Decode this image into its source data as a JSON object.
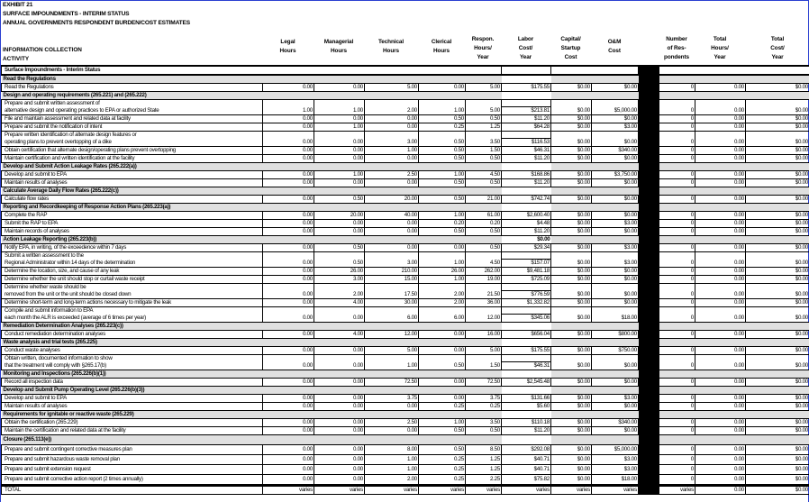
{
  "titles": [
    "EXHIBIT 21",
    "SURFACE IMPOUNDMENTS - INTERIM STATUS",
    "ANNUAL GOVERNMENTS RESPONDENT BURDEN/COST ESTIMATES"
  ],
  "header": {
    "activity": [
      "INFORMATION COLLECTION",
      "ACTIVITY"
    ],
    "columns": [
      [
        "Legal",
        "Hours"
      ],
      [
        "Managerial",
        "Hours"
      ],
      [
        "Technical",
        "Hours"
      ],
      [
        "Clerical",
        "Hours"
      ],
      [
        "Respon.",
        "Hours/",
        "Year"
      ],
      [
        "Labor",
        "Cost/",
        "Year"
      ],
      [
        "Capital/",
        "Startup",
        "Cost"
      ],
      [
        "O&M",
        "Cost"
      ],
      [
        "Number",
        "of Res-",
        "pondents"
      ],
      [
        "Total",
        "Hours/",
        "Year"
      ],
      [
        "Total",
        "Cost/",
        "Year"
      ]
    ]
  },
  "colors": {
    "section_bg": "#e0e0e0",
    "frame": "#2a3fd0",
    "divider": "#000000"
  },
  "rows": [
    {
      "type": "top",
      "label": "Surface Impoundments - Interim Status"
    },
    {
      "type": "sec",
      "label": "Read the Regulations"
    },
    {
      "label": [
        "Read the Regulations"
      ],
      "v": [
        "0.00",
        "0.00",
        "5.00",
        "0.00",
        "5.00",
        "$175.55",
        "$0.00",
        "$0.00"
      ],
      "r": [
        "0",
        "0.00",
        "$0.00"
      ]
    },
    {
      "type": "sec",
      "label": "Design and operating requirements (265.221) and (265.222)"
    },
    {
      "label": [
        "Prepare and submit written assessment of",
        "alternative design and operating practices to EPA or authorized State"
      ],
      "v": [
        "1.00",
        "1.00",
        "2.00",
        "1.00",
        "5.00",
        "$213.81",
        "$0.00",
        "$5,000.00"
      ],
      "r": [
        "0",
        "0.00",
        "$0.00"
      ]
    },
    {
      "label": [
        "File and maintain  assessment  and related data at facility"
      ],
      "v": [
        "0.00",
        "0.00",
        "0.00",
        "0.50",
        "0.50",
        "$11.20",
        "$0.00",
        "$0.00"
      ],
      "r": [
        "0",
        "0.00",
        "$0.00"
      ]
    },
    {
      "label": [
        "Prepare and submit the notification of intent"
      ],
      "v": [
        "0.00",
        "1.00",
        "0.00",
        "0.25",
        "1.25",
        "$64.28",
        "$0.00",
        "$3.00"
      ],
      "r": [
        "0",
        "0.00",
        "$0.00"
      ]
    },
    {
      "label": [
        "Prepare written identification of alternate design features or",
        "operating plans to prevent overtopping of  a dike"
      ],
      "v": [
        "0.00",
        "0.00",
        "3.00",
        "0.50",
        "3.50",
        "$116.53",
        "$0.00",
        "$0.00"
      ],
      "r": [
        "0",
        "0.00",
        "$0.00"
      ]
    },
    {
      "label": [
        "Obtain certification that alternate design/operating plans prevent overtopping"
      ],
      "v": [
        "0.00",
        "0.00",
        "1.00",
        "0.50",
        "1.50",
        "$46.31",
        "$0.00",
        "$340.00"
      ],
      "r": [
        "0",
        "0.00",
        "$0.00"
      ]
    },
    {
      "label": [
        "Maintain certification and written identification at the facility"
      ],
      "v": [
        "0.00",
        "0.00",
        "0.00",
        "0.50",
        "0.50",
        "$11.20",
        "$0.00",
        "$0.00"
      ],
      "r": [
        "0",
        "0.00",
        "$0.00"
      ]
    },
    {
      "type": "sec",
      "label": "Develop and Submit Action Leakage Rates (265.222(a))"
    },
    {
      "label": [
        "Develop and submit to EPA"
      ],
      "v": [
        "0.00",
        "1.00",
        "2.50",
        "1.00",
        "4.50",
        "$168.86",
        "$0.00",
        "$3,750.00"
      ],
      "r": [
        "0",
        "0.00",
        "$0.00"
      ]
    },
    {
      "label": [
        "Maintain results of analyses"
      ],
      "v": [
        "0.00",
        "0.00",
        "0.00",
        "0.50",
        "0.50",
        "$11.20",
        "$0.00",
        "$0.00"
      ],
      "r": [
        "0",
        "0.00",
        "$0.00"
      ]
    },
    {
      "type": "sec",
      "label": "Calculate Average Daily Flow Rates (265.222(c))"
    },
    {
      "label": [
        "Calculate flow rates"
      ],
      "v": [
        "0.00",
        "0.50",
        "20.00",
        "0.50",
        "21.00",
        "$742.74",
        "$0.00",
        "$0.00"
      ],
      "r": [
        "0",
        "0.00",
        "$0.00"
      ]
    },
    {
      "type": "sec",
      "label": "Reporting and Recordkeeping of Response Action Plans (265.223(a))"
    },
    {
      "label": [
        "Complete the RAP"
      ],
      "v": [
        "0.00",
        "20.00",
        "40.00",
        "1.00",
        "61.00",
        "$2,600.40",
        "$0.00",
        "$0.00"
      ],
      "r": [
        "0",
        "0.00",
        "$0.00"
      ]
    },
    {
      "label": [
        "Submit the RAP to EPA"
      ],
      "v": [
        "0.00",
        "0.00",
        "0.00",
        "0.20",
        "0.20",
        "$4.48",
        "$0.00",
        "$3.00"
      ],
      "r": [
        "0",
        "0.00",
        "$0.00"
      ]
    },
    {
      "label": [
        "Maintain records of analyses"
      ],
      "v": [
        "0.00",
        "0.00",
        "0.00",
        "0.50",
        "0.50",
        "$11.20",
        "$0.00",
        "$0.00"
      ],
      "r": [
        "0",
        "0.00",
        "$0.00"
      ]
    },
    {
      "type": "sec",
      "label": "Action Leakage Reporting (265.223(b))",
      "labor": "$0.00"
    },
    {
      "label": [
        "Notify EPA, in writing, of the exceedence within 7 days"
      ],
      "v": [
        "0.00",
        "0.50",
        "0.00",
        "0.00",
        "0.50",
        "$29.34",
        "$0.00",
        "$3.00"
      ],
      "r": [
        "0",
        "0.00",
        "$0.00"
      ]
    },
    {
      "label": [
        "Submit a written assessment to the",
        "Regional Administrator within 14 days of the determination"
      ],
      "v": [
        "0.00",
        "0.50",
        "3.00",
        "1.00",
        "4.50",
        "$157.07",
        "$0.00",
        "$3.00"
      ],
      "r": [
        "0",
        "0.00",
        "$0.00"
      ]
    },
    {
      "label": [
        "Determine the location, size, and cause of any leak"
      ],
      "v": [
        "0.00",
        "26.00",
        "210.00",
        "26.00",
        "262.00",
        "$9,481.18",
        "$0.00",
        "$0.00"
      ],
      "r": [
        "0",
        "0.00",
        "$0.00"
      ]
    },
    {
      "label": [
        "Determine whether the unit should stop or curtail waste receipt"
      ],
      "v": [
        "0.00",
        "3.00",
        "15.00",
        "1.00",
        "19.00",
        "$725.09",
        "$0.00",
        "$0.00"
      ],
      "r": [
        "0",
        "0.00",
        "$0.00"
      ]
    },
    {
      "label": [
        "Determine whether waste should be",
        "removed from the unit or the unit should be closed down"
      ],
      "v": [
        "0.00",
        "2.00",
        "17.50",
        "2.00",
        "21.50",
        "$776.59",
        "$0.00",
        "$0.00"
      ],
      "r": [
        "0",
        "0.00",
        "$0.00"
      ]
    },
    {
      "label": [
        "Determine short-term and long-term actions necessary to mitigate the leak"
      ],
      "v": [
        "0.00",
        "4.00",
        "30.00",
        "2.00",
        "36.00",
        "$1,332.82",
        "$0.00",
        "$0.00"
      ],
      "r": [
        "0",
        "0.00",
        "$0.00"
      ]
    },
    {
      "label": [
        "Compile and submit information to EPA",
        "each month the ALR is exceeded (average of 6 times per year)"
      ],
      "v": [
        "0.00",
        "0.00",
        "6.00",
        "6.00",
        "12.00",
        "$345.06",
        "$0.00",
        "$18.00"
      ],
      "r": [
        "0",
        "0.00",
        "$0.00"
      ]
    },
    {
      "type": "sec",
      "label": "Remediation Determination Analyses (265.223(c))"
    },
    {
      "label": [
        "Conduct remediation determination analyses"
      ],
      "v": [
        "0.00",
        "4.00",
        "12.00",
        "0.00",
        "16.00",
        "$656.04",
        "$0.00",
        "$800.00"
      ],
      "r": [
        "0",
        "0.00",
        "$0.00"
      ]
    },
    {
      "type": "sec",
      "label": "Waste analysis and trial tests (265.225)"
    },
    {
      "label": [
        "Conduct waste analyses"
      ],
      "v": [
        "0.00",
        "0.00",
        "5.00",
        "0.00",
        "5.00",
        "$175.55",
        "$0.00",
        "$750.00"
      ],
      "r": [
        "0",
        "0.00",
        "$0.00"
      ]
    },
    {
      "label": [
        "Obtain written, documented information to show",
        "that the treatment will comply with §265.17(b)"
      ],
      "v": [
        "0.00",
        "0.00",
        "1.00",
        "0.50",
        "1.50",
        "$46.31",
        "$0.00",
        "$0.00"
      ],
      "r": [
        "0",
        "0.00",
        "$0.00"
      ]
    },
    {
      "type": "sec",
      "label": "Monitoring and Inspections (265.226(b)(1))"
    },
    {
      "label": [
        "Record all inspection data"
      ],
      "v": [
        "0.00",
        "0.00",
        "72.50",
        "0.00",
        "72.50",
        "$2,545.48",
        "$0.00",
        "$0.00"
      ],
      "r": [
        "0",
        "0.00",
        "$0.00"
      ]
    },
    {
      "type": "sec",
      "label": "Develop and Submit Pump Operating Level (265.226(b)(3))"
    },
    {
      "label": [
        "Develop and submit to EPA"
      ],
      "v": [
        "0.00",
        "0.00",
        "3.75",
        "0.00",
        "3.75",
        "$131.66",
        "$0.00",
        "$3.00"
      ],
      "r": [
        "0",
        "0.00",
        "$0.00"
      ]
    },
    {
      "label": [
        "Maintain results of analyses"
      ],
      "v": [
        "0.00",
        "0.00",
        "0.00",
        "0.25",
        "0.25",
        "$5.60",
        "$0.00",
        "$0.00"
      ],
      "r": [
        "0",
        "0.00",
        "$0.00"
      ]
    },
    {
      "type": "sec",
      "label": "Requirements for ignitable or reactive waste (265.229)"
    },
    {
      "label": [
        "Obtain the certification (265.229)"
      ],
      "v": [
        "0.00",
        "0.00",
        "2.50",
        "1.00",
        "3.50",
        "$110.18",
        "$0.00",
        "$340.00"
      ],
      "r": [
        "0",
        "0.00",
        "$0.00"
      ]
    },
    {
      "label": [
        "Maintain the certification and related data at the facility"
      ],
      "v": [
        "0.00",
        "0.00",
        "0.00",
        "0.50",
        "0.50",
        "$11.20",
        "$0.00",
        "$0.00"
      ],
      "r": [
        "0",
        "0.00",
        "$0.00"
      ]
    },
    {
      "type": "sec",
      "label": "Closure (265.113(e))",
      "tall": true
    },
    {
      "label": [
        "Prepare and submit contingent corrective measures plan"
      ],
      "v": [
        "0.00",
        "0.00",
        "8.00",
        "0.50",
        "8.50",
        "$292.08",
        "$0.00",
        "$5,000.00"
      ],
      "r": [
        "0",
        "0.00",
        "$0.00"
      ],
      "tall": true
    },
    {
      "label": [
        "Prepare and submit hazardous waste removal plan"
      ],
      "v": [
        "0.00",
        "0.00",
        "1.00",
        "0.25",
        "1.25",
        "$40.71",
        "$0.00",
        "$3.00"
      ],
      "r": [
        "0",
        "0.00",
        "$0.00"
      ],
      "tall": true
    },
    {
      "label": [
        "Prepare and submit extension request"
      ],
      "v": [
        "0.00",
        "0.00",
        "1.00",
        "0.25",
        "1.25",
        "$40.71",
        "$0.00",
        "$3.00"
      ],
      "r": [
        "0",
        "0.00",
        "$0.00"
      ],
      "tall": true
    },
    {
      "label": [
        "Prepare and submit corrective action report (2 times annually)"
      ],
      "v": [
        "0.00",
        "0.00",
        "2.00",
        "0.25",
        "2.25",
        "$75.82",
        "$0.00",
        "$18.00"
      ],
      "r": [
        "0",
        "0.00",
        "$0.00"
      ],
      "tall": true
    },
    {
      "type": "tot",
      "label": [
        "TOTAL"
      ],
      "v": [
        "varies",
        "varies",
        "varies",
        "varies",
        "varies",
        "varies",
        "varies",
        "varies"
      ],
      "r": [
        "varies",
        "0.00",
        "$0.00"
      ]
    }
  ]
}
